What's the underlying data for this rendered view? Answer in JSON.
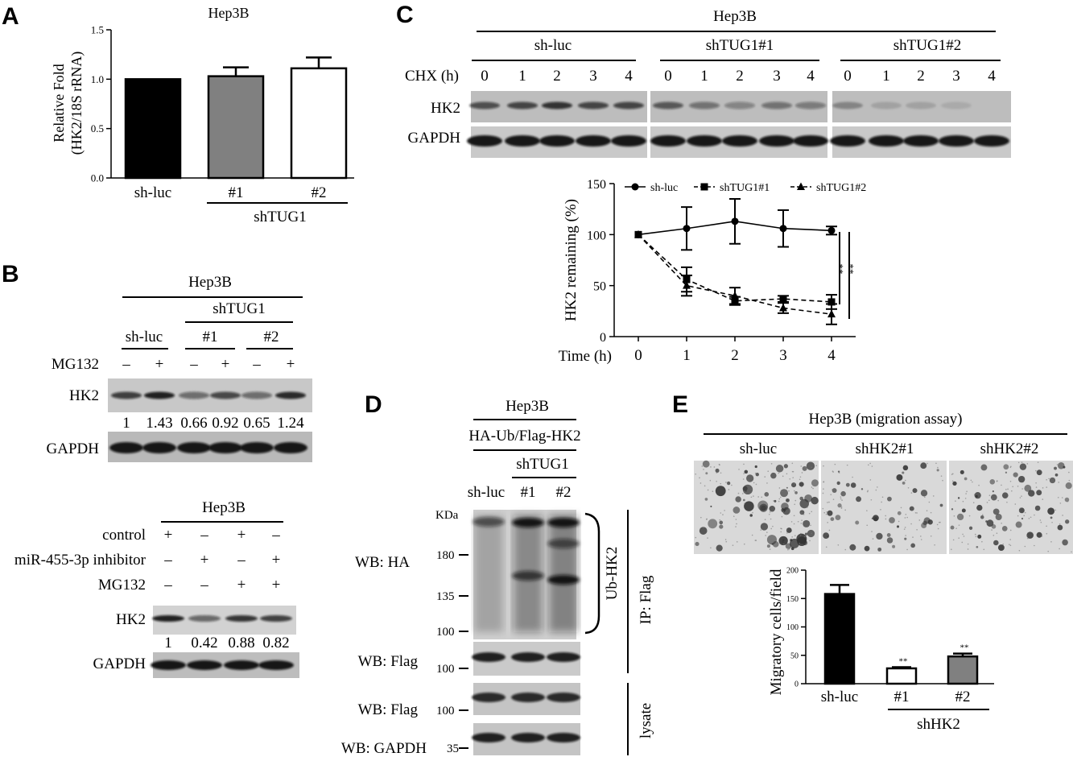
{
  "panels": {
    "A": "A",
    "B": "B",
    "C": "C",
    "D": "D",
    "E": "E"
  },
  "panel_a": {
    "title": "Hep3B",
    "ylabel_line1": "Relative Fold",
    "ylabel_line2": "(HK2/18S rRNA)",
    "group_label": "shTUG1",
    "tick_labels": [
      "0.0",
      "0.5",
      "1.0",
      "1.5"
    ]
  },
  "panel_b": {
    "top": {
      "cell": "Hep3B",
      "group": "shTUG1",
      "lanes_groups": [
        "sh-luc",
        "#1",
        "#2"
      ],
      "mg132_label": "MG132",
      "mg132": [
        "–",
        "+",
        "–",
        "+",
        "–",
        "+"
      ],
      "hk2_label": "HK2",
      "gapdh_label": "GAPDH",
      "quant": [
        "1",
        "1.43",
        "0.66",
        "0.92",
        "0.65",
        "1.24"
      ]
    },
    "bottom": {
      "cell": "Hep3B",
      "rows": [
        {
          "label": "control",
          "signs": [
            "+",
            "–",
            "+",
            "–"
          ]
        },
        {
          "label": "miR-455-3p inhibitor",
          "signs": [
            "–",
            "+",
            "–",
            "+"
          ]
        },
        {
          "label": "MG132",
          "signs": [
            "–",
            "–",
            "+",
            "+"
          ]
        }
      ],
      "hk2_label": "HK2",
      "gapdh_label": "GAPDH",
      "quant": [
        "1",
        "0.42",
        "0.88",
        "0.82"
      ]
    }
  },
  "panel_c": {
    "cell": "Hep3B",
    "groups": [
      "sh-luc",
      "shTUG1#1",
      "shTUG1#2"
    ],
    "chx_label": "CHX (h)",
    "times": [
      "0",
      "1",
      "2",
      "3",
      "4"
    ],
    "hk2_label": "HK2",
    "gapdh_label": "GAPDH",
    "sig1": "**",
    "sig2": "**"
  },
  "panel_d": {
    "cell": "Hep3B",
    "construct": "HA-Ub/Flag-HK2",
    "group": "shTUG1",
    "lanes": [
      "sh-luc",
      "#1",
      "#2"
    ],
    "kda": "KDa",
    "markers_ha": [
      "180",
      "135",
      "100"
    ],
    "marker_flag": "100",
    "marker_flag2": "100",
    "marker_gapdh": "35",
    "wb_ha": "WB: HA",
    "wb_flag": "WB: Flag",
    "wb_flag2": "WB: Flag",
    "wb_gapdh": "WB: GAPDH",
    "ub_label": "Ub-HK2",
    "ip_label": "IP: Flag",
    "lysate_label": "lysate"
  },
  "panel_e": {
    "title": "Hep3B (migration assay)",
    "image_labels": [
      "sh-luc",
      "shHK2#1",
      "shHK2#2"
    ],
    "group_label": "shHK2",
    "sig": [
      "**",
      "**"
    ],
    "tick_labels": [
      "0",
      "50",
      "100",
      "150",
      "200"
    ]
  },
  "chart_data": [
    {
      "type": "bar",
      "title": "Hep3B",
      "categories": [
        "sh-luc",
        "#1",
        "#2"
      ],
      "values": [
        1.0,
        1.03,
        1.11
      ],
      "errors": [
        0,
        0.09,
        0.11
      ],
      "colors": [
        "#000000",
        "#808080",
        "#ffffff"
      ],
      "ylabel": "Relative Fold (HK2/18S rRNA)",
      "ylim": [
        0,
        1.5
      ],
      "yticks": [
        0.0,
        0.5,
        1.0,
        1.5
      ]
    },
    {
      "type": "line",
      "xlabel": "Time (h)",
      "ylabel": "HK2 remaining (%)",
      "x": [
        0,
        1,
        2,
        3,
        4
      ],
      "ylim": [
        0,
        150
      ],
      "yticks": [
        0,
        50,
        100,
        150
      ],
      "legend_position": "top",
      "series": [
        {
          "name": "sh-luc",
          "marker": "circle",
          "dash": "solid",
          "values": [
            100,
            106,
            113,
            106,
            104
          ],
          "errors": [
            0,
            21,
            22,
            18,
            4
          ]
        },
        {
          "name": "shTUG1#1",
          "marker": "square",
          "dash": "dashed",
          "values": [
            100,
            56,
            35,
            37,
            34
          ],
          "errors": [
            0,
            12,
            4,
            3,
            7
          ]
        },
        {
          "name": "shTUG1#2",
          "marker": "triangle",
          "dash": "dashed",
          "values": [
            100,
            50,
            40,
            28,
            22
          ],
          "errors": [
            0,
            10,
            8,
            5,
            10
          ]
        }
      ]
    },
    {
      "type": "bar",
      "categories": [
        "sh-luc",
        "#1",
        "#2"
      ],
      "values": [
        158,
        27,
        48
      ],
      "errors": [
        16,
        2,
        5
      ],
      "colors": [
        "#000000",
        "#ffffff",
        "#808080"
      ],
      "ylabel": "Migratory cells/field",
      "ylim": [
        0,
        200
      ],
      "yticks": [
        0,
        50,
        100,
        150,
        200
      ]
    }
  ]
}
